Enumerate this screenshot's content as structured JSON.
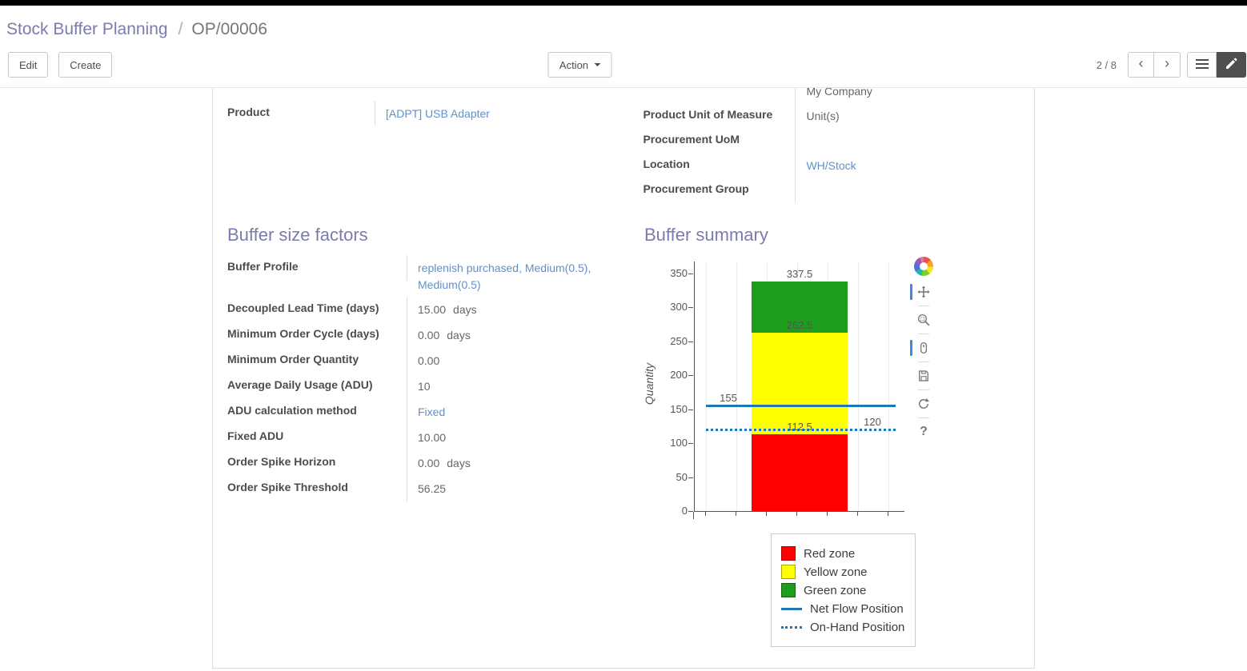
{
  "breadcrumb": {
    "parent": "Stock Buffer Planning",
    "separator": "/",
    "current": "OP/00006"
  },
  "control_panel": {
    "edit_label": "Edit",
    "create_label": "Create",
    "action_label": "Action",
    "pager_value": "2 / 8",
    "pager_prev_icon": "‹",
    "pager_next_icon": "›"
  },
  "form": {
    "product_group": {
      "fields": [
        {
          "label": "Product",
          "value": "[ADPT] USB Adapter"
        }
      ]
    },
    "info_group": {
      "fields": [
        {
          "label": "",
          "value": "My Company"
        },
        {
          "label": "Product Unit of Measure",
          "value": "Unit(s)"
        },
        {
          "label": "Procurement UoM",
          "value": ""
        },
        {
          "label": "Location",
          "value": "WH/Stock"
        },
        {
          "label": "Procurement Group",
          "value": ""
        }
      ]
    },
    "buffer_factors": {
      "title": "Buffer size factors",
      "fields": [
        {
          "label": "Buffer Profile",
          "value": "replenish purchased, Medium(0.5), Medium(0.5)"
        },
        {
          "label": "Decoupled Lead Time (days)",
          "value": "15.00",
          "suffix": "days"
        },
        {
          "label": "Minimum Order Cycle (days)",
          "value": "0.00",
          "suffix": "days"
        },
        {
          "label": "Minimum Order Quantity",
          "value": "0.00"
        },
        {
          "label": "Average Daily Usage (ADU)",
          "value": "10"
        },
        {
          "label": "ADU calculation method",
          "value": "Fixed"
        },
        {
          "label": "Fixed ADU",
          "value": "10.00"
        },
        {
          "label": "Order Spike Horizon",
          "value": "0.00",
          "suffix": "days"
        },
        {
          "label": "Order Spike Threshold",
          "value": "56.25"
        }
      ]
    }
  },
  "chart_toolbar": {
    "icons": [
      "bokeh-logo",
      "pan-icon",
      "box-zoom-icon",
      "wheel-zoom-icon",
      "save-icon",
      "reset-icon",
      "help-icon"
    ],
    "active_tools": [
      "pan-icon",
      "wheel-zoom-icon"
    ],
    "help_glyph": "?"
  },
  "chart_data": {
    "type": "bar",
    "title": "Buffer summary",
    "xlabel": "",
    "ylabel": "Quantity",
    "ylim": [
      0,
      350
    ],
    "yticks": [
      0,
      50,
      100,
      150,
      200,
      250,
      300,
      350
    ],
    "grid": "vertical",
    "bar": {
      "segments": [
        {
          "name": "Red zone",
          "from": 0,
          "to": 112.5,
          "color": "#fe0000"
        },
        {
          "name": "Yellow zone",
          "from": 112.5,
          "to": 262.5,
          "color": "#ffff00"
        },
        {
          "name": "Green zone",
          "from": 262.5,
          "to": 337.5,
          "color": "#1e9c1e"
        }
      ]
    },
    "lines": [
      {
        "name": "Net Flow Position",
        "value": 155,
        "style": "solid",
        "color": "#1f77b4"
      },
      {
        "name": "On-Hand Position",
        "value": 120,
        "style": "dotted",
        "color": "#1f77b4"
      }
    ],
    "annotations": [
      {
        "text": "337.5",
        "value": 337.5,
        "anchor": "bar"
      },
      {
        "text": "262.5",
        "value": 262.5,
        "anchor": "bar"
      },
      {
        "text": "155",
        "value": 155,
        "anchor": "left"
      },
      {
        "text": "112.5",
        "value": 112.5,
        "anchor": "bar"
      },
      {
        "text": "120",
        "value": 120,
        "anchor": "right"
      }
    ],
    "legend": {
      "position": "bottom-right",
      "items": [
        {
          "label": "Red zone",
          "swatch": "box",
          "color": "#fe0000"
        },
        {
          "label": "Yellow zone",
          "swatch": "box",
          "color": "#ffff00"
        },
        {
          "label": "Green zone",
          "swatch": "box",
          "color": "#1e9c1e"
        },
        {
          "label": "Net Flow Position",
          "swatch": "solid-line",
          "color": "#1f77b4"
        },
        {
          "label": "On-Hand Position",
          "swatch": "dotted-line",
          "color": "#1f77b4"
        }
      ]
    }
  }
}
